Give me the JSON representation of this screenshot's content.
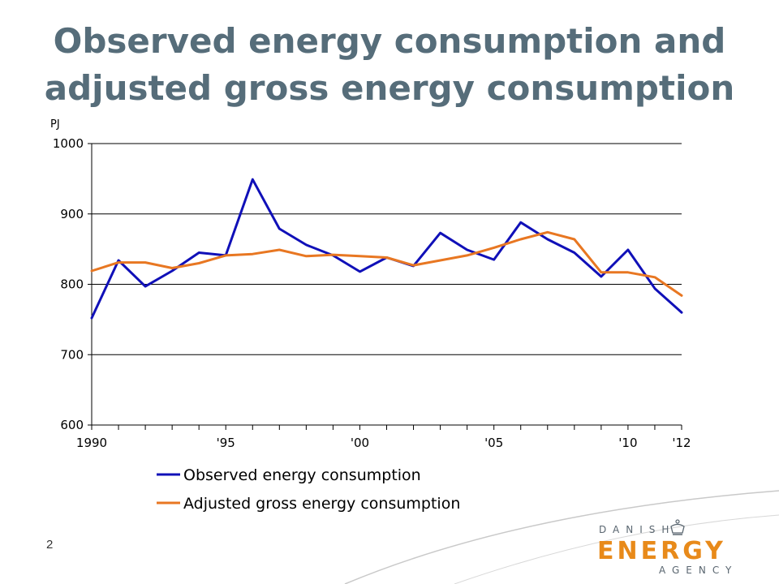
{
  "slide": {
    "title": "Observed energy consumption and adjusted gross energy consumption",
    "page_number": "2"
  },
  "logo": {
    "top": "DANISH",
    "main": "ENERGY",
    "bottom": "AGENCY",
    "color": "#e88a1a"
  },
  "chart_data": {
    "type": "line",
    "title": "",
    "unit_label": "PJ",
    "xlabel": "",
    "ylabel": "PJ",
    "x": [
      1990,
      1991,
      1992,
      1993,
      1994,
      1995,
      1996,
      1997,
      1998,
      1999,
      2000,
      2001,
      2002,
      2003,
      2004,
      2005,
      2006,
      2007,
      2008,
      2009,
      2010,
      2011,
      2012
    ],
    "xlim": [
      1990,
      2012
    ],
    "ylim": [
      600,
      1000
    ],
    "yticks": [
      600,
      700,
      800,
      900,
      1000
    ],
    "xtick_labels": [
      {
        "x": 1990,
        "label": "1990"
      },
      {
        "x": 1995,
        "label": "'95"
      },
      {
        "x": 2000,
        "label": "'00"
      },
      {
        "x": 2005,
        "label": "'05"
      },
      {
        "x": 2010,
        "label": "'10"
      },
      {
        "x": 2012,
        "label": "'12"
      }
    ],
    "grid": "horizontal",
    "legend_position": "bottom",
    "series": [
      {
        "name": "Observed energy consumption",
        "color": "#1010b8",
        "values": [
          752,
          834,
          797,
          819,
          845,
          841,
          949,
          879,
          856,
          841,
          818,
          838,
          826,
          873,
          849,
          835,
          888,
          864,
          845,
          811,
          849,
          794,
          760
        ]
      },
      {
        "name": "Adjusted gross energy consumption",
        "color": "#e87722",
        "values": [
          819,
          831,
          831,
          823,
          830,
          841,
          843,
          849,
          840,
          842,
          840,
          838,
          827,
          834,
          841,
          852,
          864,
          874,
          864,
          817,
          817,
          810,
          784
        ]
      }
    ]
  }
}
